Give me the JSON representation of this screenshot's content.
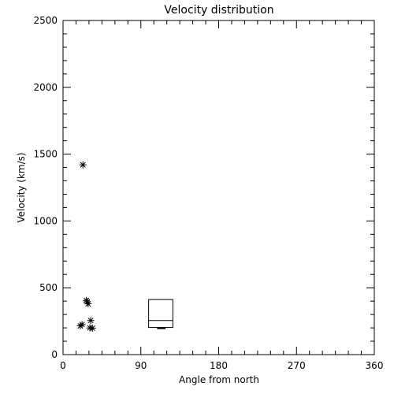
{
  "chart_data": {
    "type": "scatter",
    "title": "Velocity distribution",
    "xlabel": "Angle from north",
    "ylabel": "Velocity (km/s)",
    "xlim": [
      0,
      360
    ],
    "ylim": [
      0,
      2500
    ],
    "xticks": [
      0,
      90,
      180,
      270,
      360
    ],
    "yticks": [
      0,
      500,
      1000,
      1500,
      2000,
      2500
    ],
    "grid": false,
    "legend": "none",
    "marker": "asterisk",
    "points": [
      {
        "x": 23,
        "y": 1420
      },
      {
        "x": 27,
        "y": 405
      },
      {
        "x": 28,
        "y": 395
      },
      {
        "x": 29,
        "y": 380
      },
      {
        "x": 20,
        "y": 215
      },
      {
        "x": 22,
        "y": 225
      },
      {
        "x": 32,
        "y": 255
      },
      {
        "x": 31,
        "y": 200
      },
      {
        "x": 34,
        "y": 198
      }
    ],
    "boxplot": {
      "x_min": 99,
      "x_max": 127,
      "whisker_low": 197,
      "q1": 203,
      "median": 255,
      "q3": 412
    },
    "colors": {
      "axis": "#000000",
      "background": "#ffffff"
    }
  }
}
